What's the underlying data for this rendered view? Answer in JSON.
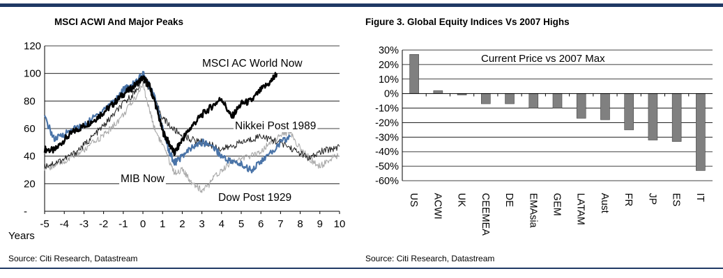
{
  "left_panel": {
    "title": "MSCI ACWI And Major Peaks",
    "source": "Source: Citi Research, Datastream"
  },
  "right_panel": {
    "title": "Figure 3. Global Equity Indices Vs 2007 Highs",
    "source": "Source: Citi Research, Datastream"
  },
  "chart_data": [
    {
      "type": "line",
      "title": "MSCI ACWI And Major Peaks",
      "xlabel": "Years",
      "ylabel": "",
      "xlim": [
        -5,
        10
      ],
      "ylim": [
        0,
        120
      ],
      "x_ticks": [
        "-5",
        "-4",
        "-3",
        "-2",
        "-1",
        "0",
        "1",
        "2",
        "3",
        "4",
        "5",
        "6",
        "7",
        "8",
        "9",
        "10"
      ],
      "y_ticks": [
        "-",
        "20",
        "40",
        "60",
        "80",
        "100",
        "120"
      ],
      "grid": true,
      "annotations": [
        "MSCI AC World Now",
        "Nikkei Post 1989",
        "MIB Now",
        "Dow Post 1929"
      ],
      "series": [
        {
          "name": "MSCI AC World Now",
          "color": "#000000",
          "x": [
            -5,
            -4.5,
            -4,
            -3.5,
            -3,
            -2.5,
            -2,
            -1.5,
            -1,
            -0.5,
            0,
            0.3,
            0.6,
            1,
            1.3,
            1.6,
            2,
            2.5,
            3,
            3.5,
            4,
            4.5,
            5,
            5.5,
            6,
            6.5,
            6.8
          ],
          "y": [
            45,
            44,
            52,
            58,
            62,
            66,
            72,
            78,
            85,
            90,
            97,
            92,
            80,
            58,
            50,
            42,
            52,
            62,
            70,
            76,
            82,
            68,
            78,
            80,
            88,
            94,
            100
          ]
        },
        {
          "name": "Nikkei Post 1989",
          "color": "#222222",
          "x": [
            -5,
            -4.5,
            -4,
            -3.5,
            -3,
            -2.5,
            -2,
            -1.5,
            -1,
            -0.5,
            0,
            0.3,
            0.6,
            1,
            1.5,
            2,
            2.5,
            3,
            3.5,
            4,
            4.5,
            5,
            5.5,
            6,
            6.5,
            7,
            7.5,
            8,
            8.5,
            9,
            9.5,
            10
          ],
          "y": [
            33,
            35,
            38,
            42,
            48,
            55,
            62,
            70,
            78,
            85,
            95,
            90,
            80,
            68,
            60,
            55,
            52,
            50,
            48,
            45,
            47,
            50,
            52,
            55,
            52,
            50,
            46,
            42,
            38,
            43,
            45,
            47
          ]
        },
        {
          "name": "Nikkei Post 1989 (blue)",
          "color": "#4a74a8",
          "x": [
            -5,
            -4.5,
            -4,
            -3.5,
            -3,
            -2.5,
            -2,
            -1.5,
            -1,
            -0.5,
            0,
            0.3,
            0.6,
            1,
            1.3,
            1.6,
            2,
            2.5,
            3,
            3.5,
            4,
            4.5,
            5,
            5.5,
            6,
            6.5,
            7,
            7.5
          ],
          "y": [
            68,
            52,
            56,
            60,
            62,
            68,
            74,
            80,
            88,
            92,
            100,
            92,
            82,
            60,
            45,
            35,
            40,
            46,
            50,
            48,
            40,
            36,
            34,
            30,
            36,
            42,
            50,
            54
          ]
        },
        {
          "name": "Dow Post 1929",
          "color": "#aaaaaa",
          "x": [
            -5,
            -4.5,
            -4,
            -3.5,
            -3,
            -2.5,
            -2,
            -1.5,
            -1,
            -0.5,
            0,
            0.3,
            0.6,
            1,
            1.3,
            1.6,
            2,
            2.3,
            2.6,
            3,
            3.3,
            3.6,
            4,
            4.5,
            5,
            5.5,
            6,
            6.5,
            7,
            7.5,
            8,
            8.5,
            9,
            9.5,
            10
          ],
          "y": [
            31,
            33,
            36,
            40,
            44,
            50,
            55,
            62,
            70,
            80,
            92,
            75,
            60,
            48,
            38,
            28,
            30,
            24,
            20,
            15,
            18,
            24,
            30,
            36,
            38,
            40,
            44,
            50,
            55,
            58,
            45,
            38,
            32,
            38,
            40
          ]
        }
      ]
    },
    {
      "type": "bar",
      "title": "Figure 3. Global Equity Indices Vs 2007 Highs",
      "legend": "Current Price vs 2007 Max",
      "xlabel": "",
      "ylabel": "",
      "ylim": [
        -60,
        30
      ],
      "y_ticks": [
        "30%",
        "20%",
        "10%",
        "0%",
        "-10%",
        "-20%",
        "-30%",
        "-40%",
        "-50%",
        "-60%"
      ],
      "grid": true,
      "bar_color": "#808080",
      "categories": [
        "US",
        "ACWI",
        "UK",
        "CEEMEA",
        "DE",
        "EMAsia",
        "GEM",
        "LATAM",
        "Aust",
        "FR",
        "JP",
        "ES",
        "IT"
      ],
      "values": [
        27,
        2,
        -1,
        -7,
        -7,
        -10,
        -10,
        -17,
        -18,
        -25,
        -32,
        -33,
        -53
      ]
    }
  ]
}
